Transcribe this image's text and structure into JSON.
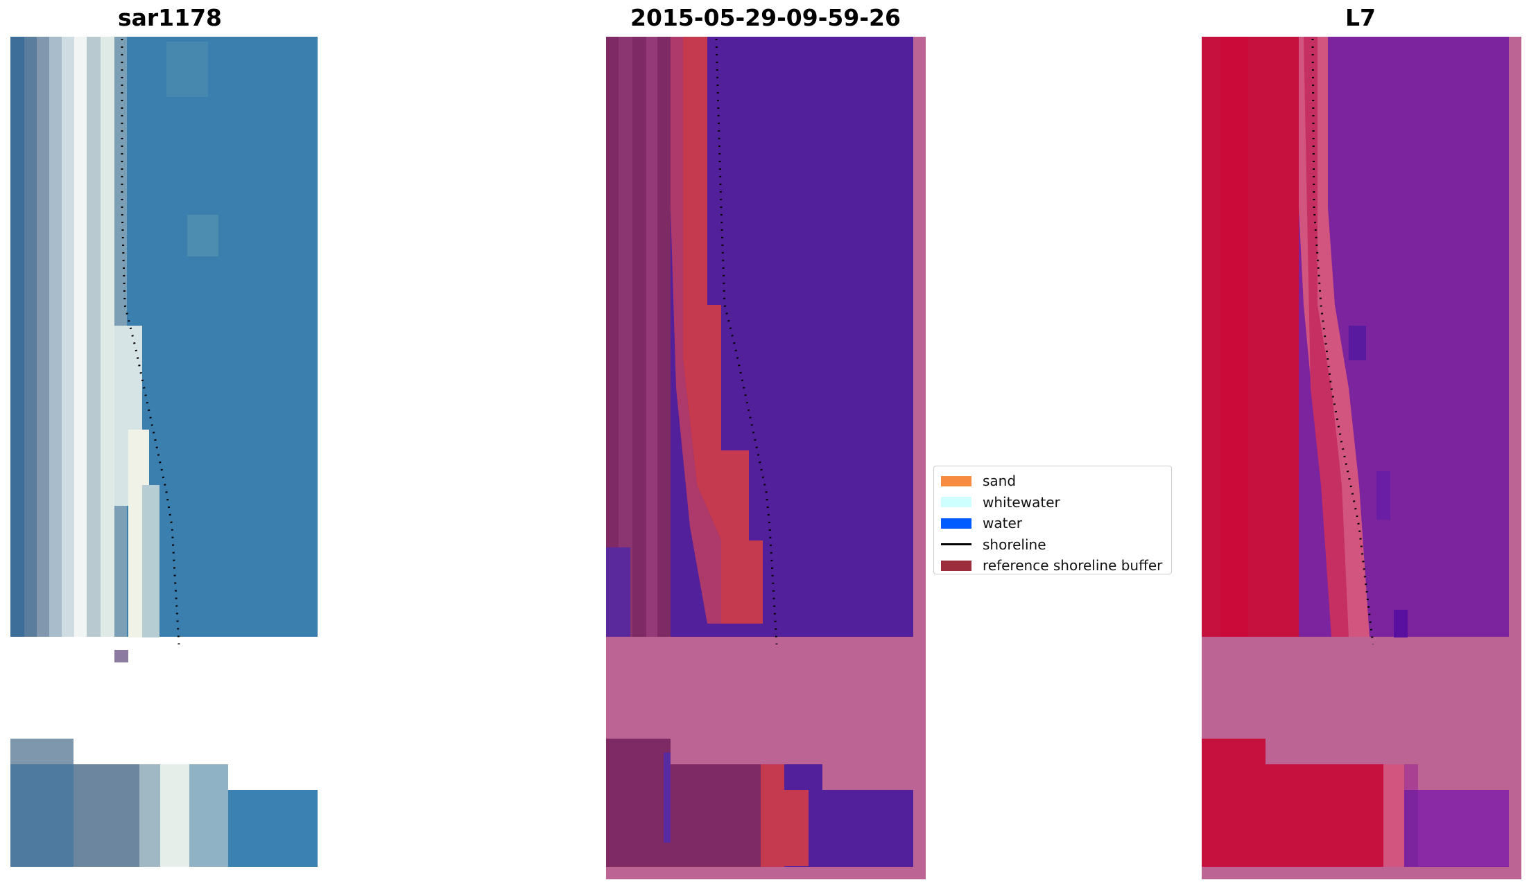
{
  "panels": [
    {
      "title": "sar1178",
      "kind": "rgb-image"
    },
    {
      "title": "2015-05-29-09-59-26",
      "kind": "classified-image"
    },
    {
      "title": "L7",
      "kind": "index-image"
    }
  ],
  "legend": {
    "items": [
      {
        "label": "sand",
        "type": "patch",
        "color": "#f78c40"
      },
      {
        "label": "whitewater",
        "type": "patch",
        "color": "#ccfffd"
      },
      {
        "label": "water",
        "type": "patch",
        "color": "#005cff"
      },
      {
        "label": "shoreline",
        "type": "line",
        "color": "#000000"
      },
      {
        "label": "reference shoreline buffer",
        "type": "patch",
        "color": "#9b2d3c"
      }
    ]
  },
  "colors": {
    "background": "#ffffff",
    "nodata_pink": "#bc6494",
    "classified_water": "#52209a",
    "classified_sand": "#c53a4f",
    "classified_land": "#7e2a64",
    "rgb_water": "#2f6ea5",
    "rgb_whitewater": "#e9f2ee",
    "index_land": "#c6113f",
    "index_water": "#7b249e"
  }
}
